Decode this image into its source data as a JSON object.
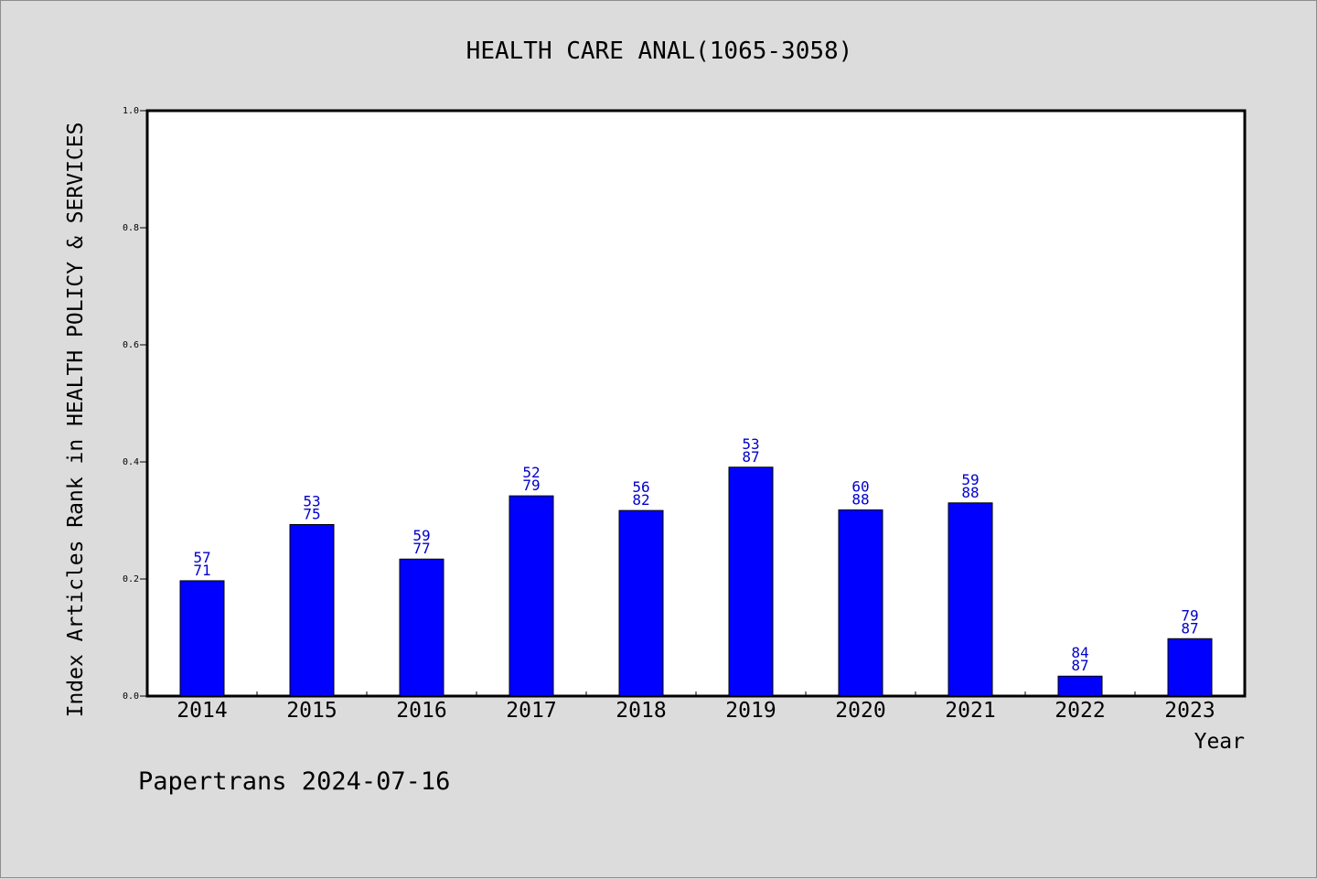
{
  "chart_data": {
    "type": "bar",
    "title": "HEALTH CARE ANAL(1065-3058)",
    "xlabel": "Year",
    "ylabel": "Index Articles Rank in HEALTH POLICY & SERVICES",
    "ylim": [
      0.0,
      1.0
    ],
    "yticks": [
      "0.0",
      "0.2",
      "0.4",
      "0.6",
      "0.8",
      "1.0"
    ],
    "grid": false,
    "legend": "none",
    "bar_color": "#0000ff",
    "label_color": "#0000cc",
    "categories": [
      "2014",
      "2015",
      "2016",
      "2017",
      "2018",
      "2019",
      "2020",
      "2021",
      "2022",
      "2023"
    ],
    "values": [
      0.197,
      0.293,
      0.234,
      0.342,
      0.317,
      0.391,
      0.318,
      0.33,
      0.034,
      0.098
    ],
    "labels_top": [
      "57",
      "53",
      "59",
      "52",
      "56",
      "53",
      "60",
      "59",
      "84",
      "79"
    ],
    "labels_bottom": [
      "71",
      "75",
      "77",
      "79",
      "82",
      "87",
      "88",
      "88",
      "87",
      "87"
    ]
  },
  "footer": {
    "text": "Papertrans 2024-07-16"
  }
}
